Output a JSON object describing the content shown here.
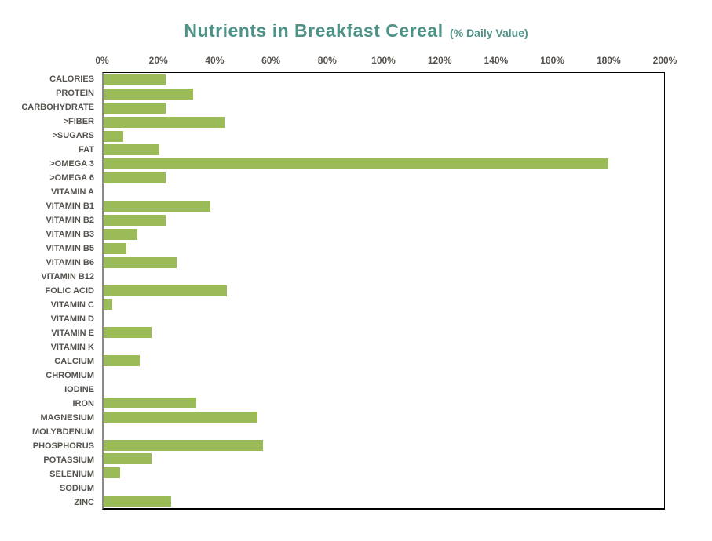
{
  "chart_data": {
    "type": "bar",
    "orientation": "horizontal",
    "title": "Nutrients in Breakfast Cereal",
    "subtitle": "(% Daily Value)",
    "categories": [
      "CALORIES",
      "PROTEIN",
      "CARBOHYDRATE",
      ">FIBER",
      ">SUGARS",
      "FAT",
      ">OMEGA 3",
      ">OMEGA 6",
      "VITAMIN A",
      "VITAMIN B1",
      "VITAMIN B2",
      "VITAMIN B3",
      "VITAMIN B5",
      "VITAMIN B6",
      "VITAMIN B12",
      "FOLIC ACID",
      "VITAMIN C",
      "VITAMIN D",
      "VITAMIN E",
      "VITAMIN K",
      "CALCIUM",
      "CHROMIUM",
      "IODINE",
      "IRON",
      "MAGNESIUM",
      "MOLYBDENUM",
      "PHOSPHORUS",
      "POTASSIUM",
      "SELENIUM",
      "SODIUM",
      "ZINC"
    ],
    "values": [
      22,
      32,
      22,
      43,
      7,
      20,
      180,
      22,
      0,
      38,
      22,
      12,
      8,
      26,
      0,
      44,
      3,
      0,
      17,
      0,
      13,
      0,
      0,
      33,
      55,
      0,
      57,
      17,
      6,
      0,
      24
    ],
    "unit": "%",
    "xlim": [
      0,
      200
    ],
    "tick_step": 20,
    "x_tick_labels": [
      "0%",
      "20%",
      "40%",
      "60%",
      "80%",
      "100%",
      "120%",
      "140%",
      "160%",
      "180%",
      "200%"
    ],
    "xlabel": "",
    "ylabel": "",
    "legend": "none",
    "grid": "off",
    "colors": {
      "bar": "#9BBB59",
      "title": "#4E9287",
      "axis_text": "#56524E",
      "plot_border": "#000000",
      "axis_line": "#898989",
      "background": "#ffffff"
    }
  }
}
